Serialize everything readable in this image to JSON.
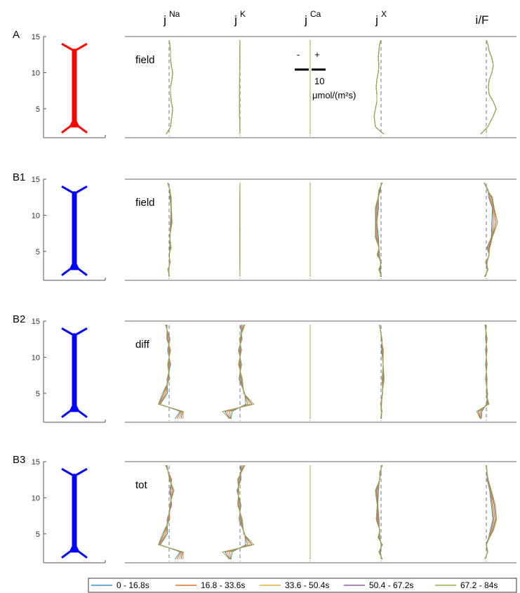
{
  "chart_data": {
    "type": "line",
    "column_headers": [
      {
        "base": "j",
        "sup": "Na"
      },
      {
        "base": "j",
        "sup": "K"
      },
      {
        "base": "j",
        "sup": "Ca"
      },
      {
        "base": "j",
        "sup": "X"
      },
      {
        "base": "i/F",
        "sup": ""
      }
    ],
    "y_ticks": [
      5,
      10,
      15
    ],
    "ylim": [
      1,
      15
    ],
    "scale_bar": {
      "minus": "-",
      "plus": "+",
      "value": "10",
      "unit": "μmol/(m²s)"
    },
    "legend": [
      {
        "label": "0 - 16.8s",
        "color": "#3a8fc4"
      },
      {
        "label": "16.8 - 33.6s",
        "color": "#d9722b"
      },
      {
        "label": "33.6 - 50.4s",
        "color": "#e0b23a"
      },
      {
        "label": "50.4 - 67.2s",
        "color": "#8c5aa6"
      },
      {
        "label": "67.2 -   84s",
        "color": "#8fae47"
      }
    ],
    "panels": [
      {
        "label": "A",
        "condition": "field",
        "neuron_color": "#ff0000",
        "columns": [
          {
            "depth": [
              1.5,
              2.5,
              4,
              5,
              6,
              7,
              8,
              9,
              10,
              11,
              12,
              13,
              14,
              14.5
            ],
            "base": [
              -2,
              1,
              2,
              2.5,
              1.5,
              1,
              1,
              2,
              2.5,
              1.5,
              1,
              1,
              0.5,
              0
            ],
            "spread": 0
          },
          {
            "depth": [
              1.5,
              4,
              8,
              12,
              14.5
            ],
            "base": [
              0,
              -0.3,
              -0.3,
              -0.2,
              0
            ],
            "spread": 0
          },
          {
            "depth": [
              1.5,
              8,
              14.5
            ],
            "base": [
              0,
              0,
              0
            ],
            "spread": 0
          },
          {
            "depth": [
              1.5,
              2.5,
              4,
              5,
              6,
              7,
              8,
              9,
              10,
              11,
              12,
              13,
              14,
              14.5
            ],
            "base": [
              2,
              -4,
              -5,
              -4,
              -3,
              -3,
              -3.5,
              -3,
              -2,
              -1.5,
              -2,
              -1.5,
              -1,
              0
            ],
            "spread": 0
          },
          {
            "depth": [
              1.5,
              2.5,
              4,
              5,
              6,
              7,
              8,
              9,
              10,
              11,
              12,
              13,
              14,
              14.5
            ],
            "base": [
              -4,
              1,
              5,
              7,
              5,
              2,
              1.5,
              2,
              4,
              5,
              4,
              2,
              1,
              0
            ],
            "spread": 0
          }
        ]
      },
      {
        "label": "B1",
        "condition": "field",
        "neuron_color": "#0000ff",
        "columns": [
          {
            "depth": [
              1.5,
              2.5,
              3.5,
              4.5,
              5.5,
              7,
              9,
              11,
              12.5,
              13.5,
              14.5
            ],
            "base": [
              0,
              -0.5,
              0.5,
              0,
              1,
              0.5,
              1.5,
              1.5,
              1,
              0.5,
              -1
            ],
            "spread": 0.5
          },
          {
            "depth": [
              1.5,
              8,
              14.5
            ],
            "base": [
              0,
              -0.2,
              0
            ],
            "spread": 0
          },
          {
            "depth": [
              1.5,
              8,
              14.5
            ],
            "base": [
              0,
              0,
              0
            ],
            "spread": 0
          },
          {
            "depth": [
              1.5,
              2.5,
              3.5,
              4.5,
              5.5,
              7,
              9,
              11,
              12.5,
              13.5,
              14.5
            ],
            "base": [
              0,
              -1,
              0,
              -2,
              -1.5,
              -3,
              -3.5,
              -3,
              -2,
              -1,
              0.5
            ],
            "spread": 0.8
          },
          {
            "depth": [
              1.5,
              2.5,
              3.5,
              4.5,
              5.5,
              7,
              9,
              11,
              12.5,
              13.5,
              14.5
            ],
            "base": [
              -1,
              1,
              0,
              2,
              1.5,
              4,
              6,
              5,
              3,
              1,
              -1.5
            ],
            "spread": 1.2
          }
        ]
      },
      {
        "label": "B2",
        "condition": "diff",
        "neuron_color": "#0000ff",
        "columns": [
          {
            "depth": [
              1.5,
              2.5,
              3.5,
              5,
              7,
              9,
              11,
              12.5,
              14.5
            ],
            "base": [
              7,
              9,
              -7,
              -3,
              -0.5,
              0,
              0,
              -0.5,
              -2
            ],
            "spread": 2.2
          },
          {
            "depth": [
              1.5,
              2.5,
              3.5,
              5,
              7,
              9,
              11,
              12.5,
              14.5
            ],
            "base": [
              -7,
              -9,
              7,
              3,
              0.5,
              0,
              0,
              0.5,
              2
            ],
            "spread": 2.2
          },
          {
            "depth": [
              1.5,
              8,
              14.5
            ],
            "base": [
              0,
              0,
              0
            ],
            "spread": 0
          },
          {
            "depth": [
              1.5,
              2.5,
              3.5,
              5,
              7,
              9,
              11,
              12.5,
              14.5
            ],
            "base": [
              0,
              0.5,
              0,
              1,
              1.5,
              1.5,
              1,
              0.5,
              -1
            ],
            "spread": 0.8
          },
          {
            "depth": [
              1.5,
              2.5,
              3.5,
              5,
              7,
              9,
              11,
              12.5,
              14.5
            ],
            "base": [
              -4,
              -5,
              1,
              0.5,
              0,
              0,
              0,
              0,
              -0.5
            ],
            "spread": 1.2
          }
        ]
      },
      {
        "label": "B3",
        "condition": "tot",
        "neuron_color": "#0000ff",
        "columns": [
          {
            "depth": [
              1.5,
              2.5,
              3.5,
              5,
              7,
              9,
              11,
              12.5,
              14.5
            ],
            "base": [
              7,
              9,
              -7,
              -3,
              -0.5,
              1,
              2,
              1,
              -2
            ],
            "spread": 2.2
          },
          {
            "depth": [
              1.5,
              2.5,
              3.5,
              5,
              7,
              9,
              11,
              12.5,
              14.5
            ],
            "base": [
              -7,
              -9,
              7,
              3,
              0.5,
              -0.5,
              -1.5,
              -0.5,
              2
            ],
            "spread": 2.2
          },
          {
            "depth": [
              1.5,
              8,
              14.5
            ],
            "base": [
              0,
              0,
              0
            ],
            "spread": 0
          },
          {
            "depth": [
              1.5,
              2.5,
              3.5,
              4.5,
              5.5,
              7,
              9,
              11,
              12.5,
              13.5,
              14.5
            ],
            "base": [
              0.5,
              -1,
              0.5,
              -1.5,
              -1,
              -2.5,
              -2.5,
              -3,
              -1,
              -0.5,
              0.5
            ],
            "spread": 0.8
          },
          {
            "depth": [
              1.5,
              2.5,
              3.5,
              4.5,
              5.5,
              7,
              9,
              11,
              12.5,
              13.5,
              14.5
            ],
            "base": [
              -1,
              1,
              0,
              2,
              4,
              6,
              5,
              3,
              1,
              0.5,
              0
            ],
            "spread": 0.3
          }
        ]
      }
    ]
  }
}
